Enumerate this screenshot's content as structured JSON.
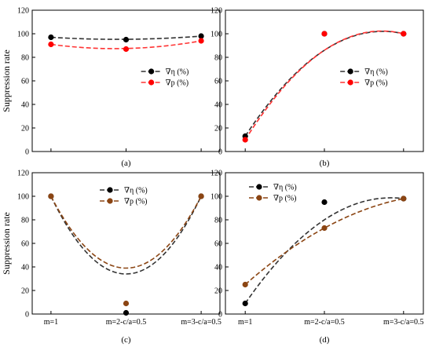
{
  "figure": {
    "ylabel": "Suppression rate"
  },
  "chart_data": [
    {
      "type": "scatter",
      "panel_label": "(a)",
      "ylabel": "Suppression rate",
      "ylim": [
        0,
        120
      ],
      "yticks": [
        0,
        20,
        40,
        60,
        80,
        100,
        120
      ],
      "categories": [
        "",
        "",
        ""
      ],
      "legend_position": "middle-right",
      "series": [
        {
          "name": "∇η (%)",
          "color": "#000000",
          "line_color": "#333333",
          "values": [
            97,
            95,
            98
          ],
          "fit": [
            97,
            95.3,
            98
          ]
        },
        {
          "name": "∇p (%)",
          "color": "#ff0000",
          "line_color": "#ff3333",
          "values": [
            91,
            87,
            94
          ],
          "fit": [
            91,
            87.5,
            94
          ]
        }
      ]
    },
    {
      "type": "scatter",
      "panel_label": "(b)",
      "ylabel": "",
      "ylim": [
        0,
        120
      ],
      "yticks": [
        0,
        20,
        40,
        60,
        80,
        100,
        120
      ],
      "categories": [
        "",
        "",
        ""
      ],
      "legend_position": "middle-right",
      "series": [
        {
          "name": "∇η (%)",
          "color": "#000000",
          "line_color": "#333333",
          "values": [
            13,
            100,
            100
          ],
          "fit": [
            13,
            86,
            100
          ]
        },
        {
          "name": "∇p (%)",
          "color": "#ff0000",
          "line_color": "#ff3333",
          "values": [
            10,
            100,
            100
          ],
          "fit": [
            10,
            86,
            100
          ]
        }
      ]
    },
    {
      "type": "scatter",
      "panel_label": "(c)",
      "ylabel": "Suppression rate",
      "ylim": [
        0,
        120
      ],
      "yticks": [
        0,
        20,
        40,
        60,
        80,
        100,
        120
      ],
      "categories": [
        "m=1",
        "m=2-c/a=0.5",
        "m=3-c/a=0.5"
      ],
      "legend_position": "top-center",
      "series": [
        {
          "name": "∇η (%)",
          "color": "#000000",
          "line_color": "#333333",
          "values": [
            100,
            1,
            100
          ],
          "fit": [
            100,
            34,
            100
          ]
        },
        {
          "name": "∇p (%)",
          "color": "#8b4513",
          "line_color": "#8b4513",
          "values": [
            100,
            9,
            100
          ],
          "fit": [
            100,
            39,
            100
          ]
        }
      ]
    },
    {
      "type": "scatter",
      "panel_label": "(d)",
      "ylabel": "",
      "ylim": [
        0,
        120
      ],
      "yticks": [
        0,
        20,
        40,
        60,
        80,
        100,
        120
      ],
      "categories": [
        "m=1",
        "m=2-c/a=0.5",
        "m=3-c/a=0.5"
      ],
      "legend_position": "top-left",
      "series": [
        {
          "name": "∇η (%)",
          "color": "#000000",
          "line_color": "#333333",
          "values": [
            9,
            95,
            98
          ],
          "fit": [
            9,
            80,
            98
          ]
        },
        {
          "name": "∇p (%)",
          "color": "#8b4513",
          "line_color": "#8b4513",
          "values": [
            25,
            73,
            98
          ],
          "fit": [
            25,
            73,
            98
          ]
        }
      ]
    }
  ]
}
